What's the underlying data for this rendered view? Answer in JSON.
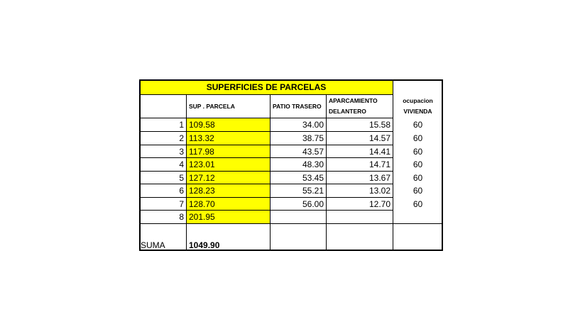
{
  "table": {
    "title": "SUPERFICIES DE PARCELAS",
    "headers": [
      null,
      "SUP . PARCELA",
      "PATIO TRASERO",
      "APARCAMIENTO DELANTERO",
      "ocupacion VIVIENDA"
    ],
    "rows": [
      [
        "1",
        "109.58",
        "34.00",
        "15.58",
        "60"
      ],
      [
        "2",
        "113.32",
        "38.75",
        "14.57",
        "60"
      ],
      [
        "3",
        "117.98",
        "43.57",
        "14.41",
        "60"
      ],
      [
        "4",
        "123.01",
        "48.30",
        "14.71",
        "60"
      ],
      [
        "5",
        "127.12",
        "53.45",
        "13.67",
        "60"
      ],
      [
        "6",
        "128.23",
        "55.21",
        "13.02",
        "60"
      ],
      [
        "7",
        "128.70",
        "56.00",
        "12.70",
        "60"
      ],
      [
        "8",
        "201.95",
        null,
        null,
        null
      ]
    ],
    "total": {
      "label": "SUMA",
      "value": "1049.90"
    }
  }
}
